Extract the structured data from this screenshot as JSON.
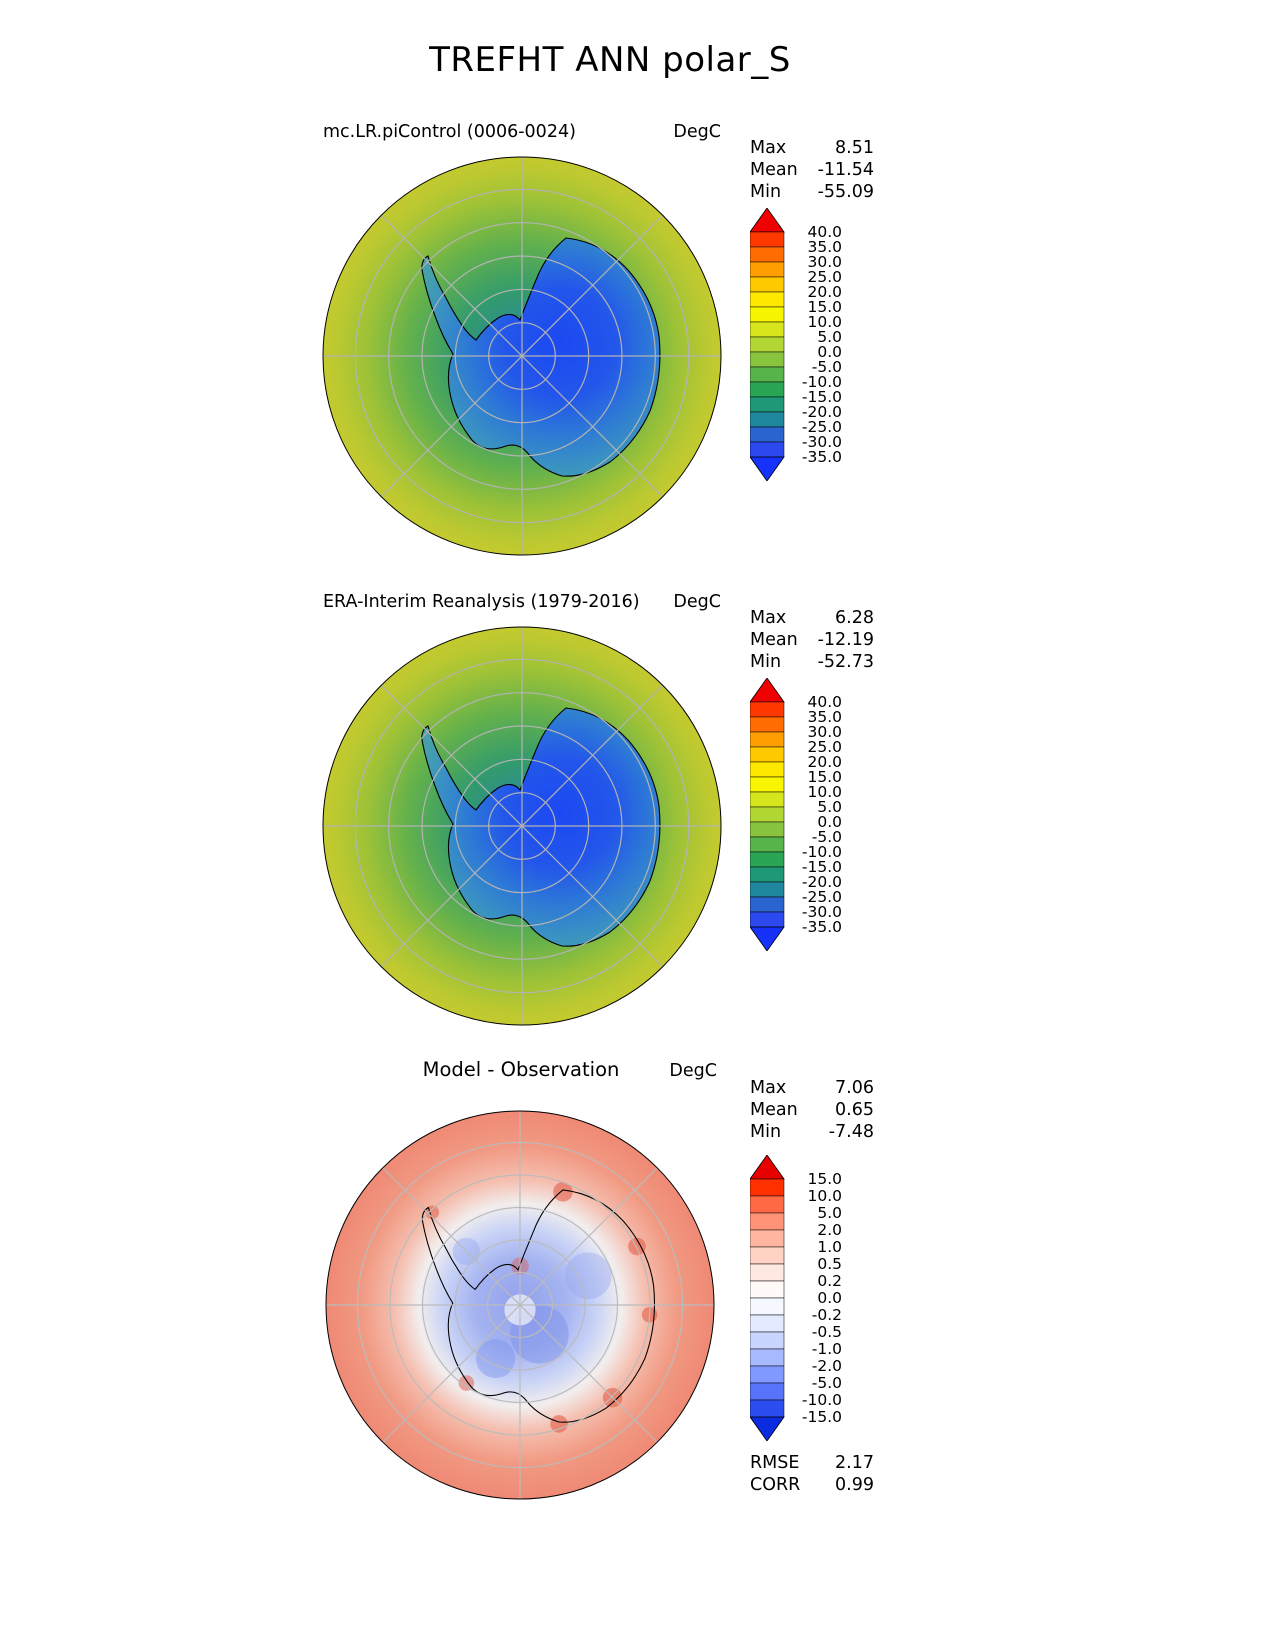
{
  "title": "TREFHT ANN polar_S",
  "panels": [
    {
      "title": "mc.LR.piControl (0006-0024)",
      "units": "DegC",
      "stats": [
        {
          "label": "Max",
          "value": "8.51"
        },
        {
          "label": "Mean",
          "value": "-11.54"
        },
        {
          "label": "Min",
          "value": "-55.09"
        }
      ],
      "colorbar": {
        "labels": [
          "40.0",
          "35.0",
          "30.0",
          "25.0",
          "20.0",
          "15.0",
          "10.0",
          "5.0",
          "0.0",
          "-5.0",
          "-10.0",
          "-15.0",
          "-20.0",
          "-25.0",
          "-30.0",
          "-35.0"
        ],
        "colors": [
          "#f00000",
          "#ff3800",
          "#ff6d00",
          "#ff9e00",
          "#ffc900",
          "#ffe800",
          "#f8f500",
          "#d6e51c",
          "#b2d735",
          "#89c43f",
          "#57b44a",
          "#2aa455",
          "#1f9878",
          "#20879e",
          "#2a64cf",
          "#2b49ef",
          "#1531fa"
        ]
      }
    },
    {
      "title": "ERA-Interim Reanalysis (1979-2016)",
      "units": "DegC",
      "stats": [
        {
          "label": "Max",
          "value": "6.28"
        },
        {
          "label": "Mean",
          "value": "-12.19"
        },
        {
          "label": "Min",
          "value": "-52.73"
        }
      ],
      "colorbar": {
        "labels": [
          "40.0",
          "35.0",
          "30.0",
          "25.0",
          "20.0",
          "15.0",
          "10.0",
          "5.0",
          "0.0",
          "-5.0",
          "-10.0",
          "-15.0",
          "-20.0",
          "-25.0",
          "-30.0",
          "-35.0"
        ],
        "colors": [
          "#f00000",
          "#ff3800",
          "#ff6d00",
          "#ff9e00",
          "#ffc900",
          "#ffe800",
          "#f8f500",
          "#d6e51c",
          "#b2d735",
          "#89c43f",
          "#57b44a",
          "#2aa455",
          "#1f9878",
          "#20879e",
          "#2a64cf",
          "#2b49ef",
          "#1531fa"
        ]
      }
    },
    {
      "title": "Model - Observation",
      "units": "DegC",
      "stats": [
        {
          "label": "Max",
          "value": "7.06"
        },
        {
          "label": "Mean",
          "value": "0.65"
        },
        {
          "label": "Min",
          "value": "-7.48"
        }
      ],
      "colorbar": {
        "labels": [
          "15.0",
          "10.0",
          "5.0",
          "2.0",
          "1.0",
          "0.5",
          "0.2",
          "0.0",
          "-0.2",
          "-0.5",
          "-1.0",
          "-2.0",
          "-5.0",
          "-10.0",
          "-15.0"
        ],
        "colors": [
          "#e80000",
          "#ff3000",
          "#ff6a45",
          "#ff9377",
          "#ffb5a0",
          "#ffd2c4",
          "#ffe8e1",
          "#fff9f7",
          "#f6f8ff",
          "#e4eaff",
          "#c9d4ff",
          "#a7b9ff",
          "#8098ff",
          "#5673fa",
          "#2c4df0",
          "#0a2be0"
        ]
      }
    }
  ],
  "footer": {
    "rmse_corr": [
      {
        "label": "RMSE",
        "value": "2.17"
      },
      {
        "label": "CORR",
        "value": "0.99"
      }
    ]
  },
  "chart_data": {
    "type": "heatmap",
    "title": "TREFHT ANN polar_S",
    "variable": "TREFHT",
    "season": "ANN",
    "region": "polar_S",
    "projection": "south polar stereographic",
    "panels": [
      {
        "title": "mc.LR.piControl (0006-0024)",
        "units": "DegC",
        "stats": {
          "max": 8.51,
          "mean": -11.54,
          "min": -55.09
        },
        "contour_levels": [
          -35.0,
          -30.0,
          -25.0,
          -20.0,
          -15.0,
          -10.0,
          -5.0,
          0.0,
          5.0,
          10.0,
          15.0,
          20.0,
          25.0,
          30.0,
          35.0,
          40.0
        ],
        "colormap": "blue-green-yellow-red rainbow"
      },
      {
        "title": "ERA-Interim Reanalysis (1979-2016)",
        "units": "DegC",
        "stats": {
          "max": 6.28,
          "mean": -12.19,
          "min": -52.73
        },
        "contour_levels": [
          -35.0,
          -30.0,
          -25.0,
          -20.0,
          -15.0,
          -10.0,
          -5.0,
          0.0,
          5.0,
          10.0,
          15.0,
          20.0,
          25.0,
          30.0,
          35.0,
          40.0
        ],
        "colormap": "blue-green-yellow-red rainbow"
      },
      {
        "title": "Model - Observation",
        "units": "DegC",
        "stats": {
          "max": 7.06,
          "mean": 0.65,
          "min": -7.48
        },
        "contour_levels": [
          -15.0,
          -10.0,
          -5.0,
          -2.0,
          -1.0,
          -0.5,
          -0.2,
          0.0,
          0.2,
          0.5,
          1.0,
          2.0,
          5.0,
          10.0,
          15.0
        ],
        "colormap": "blue-white-red diverging",
        "rmse": 2.17,
        "corr": 0.99
      }
    ]
  }
}
